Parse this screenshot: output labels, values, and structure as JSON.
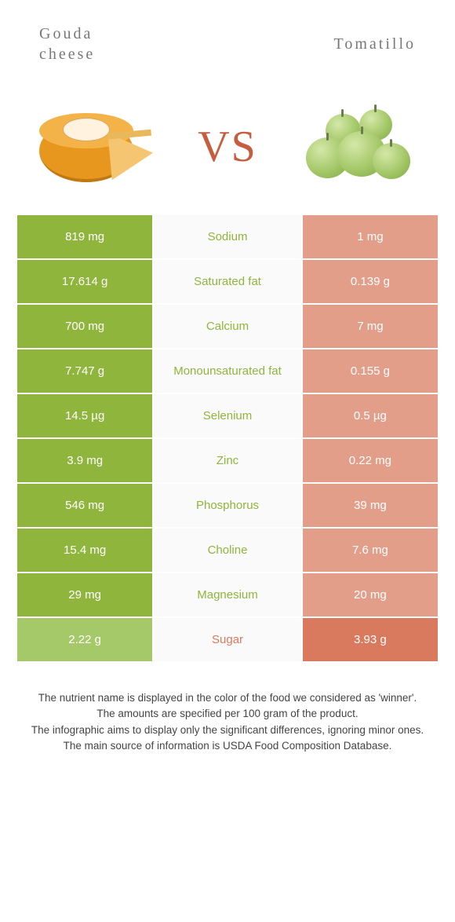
{
  "header": {
    "left_line1": "Gouda",
    "left_line2": "cheese",
    "right": "Tomatillo",
    "vs": "VS"
  },
  "colors": {
    "left_winner_bg": "#8fb53c",
    "left_other_bg": "#a5c869",
    "mid_text_left_wins": "#8fb53c",
    "mid_text_right_wins": "#d97a5e",
    "right_winner_bg": "#d97a5e",
    "right_other_bg": "#e29e89",
    "vs_color": "#c65d3e",
    "title_color": "#777777",
    "footer_color": "#444444",
    "background": "#ffffff"
  },
  "table": {
    "rows": [
      {
        "nutrient": "Sodium",
        "left": "819 mg",
        "right": "1 mg",
        "winner": "left"
      },
      {
        "nutrient": "Saturated fat",
        "left": "17.614 g",
        "right": "0.139 g",
        "winner": "left"
      },
      {
        "nutrient": "Calcium",
        "left": "700 mg",
        "right": "7 mg",
        "winner": "left"
      },
      {
        "nutrient": "Monounsaturated fat",
        "left": "7.747 g",
        "right": "0.155 g",
        "winner": "left"
      },
      {
        "nutrient": "Selenium",
        "left": "14.5 µg",
        "right": "0.5 µg",
        "winner": "left"
      },
      {
        "nutrient": "Zinc",
        "left": "3.9 mg",
        "right": "0.22 mg",
        "winner": "left"
      },
      {
        "nutrient": "Phosphorus",
        "left": "546 mg",
        "right": "39 mg",
        "winner": "left"
      },
      {
        "nutrient": "Choline",
        "left": "15.4 mg",
        "right": "7.6 mg",
        "winner": "left"
      },
      {
        "nutrient": "Magnesium",
        "left": "29 mg",
        "right": "20 mg",
        "winner": "left"
      },
      {
        "nutrient": "Sugar",
        "left": "2.22 g",
        "right": "3.93 g",
        "winner": "right"
      }
    ]
  },
  "footer": {
    "lines": [
      "The nutrient name is displayed in the color of the food we considered as 'winner'.",
      "The amounts are specified per 100 gram of the product.",
      "The infographic aims to display only the significant differences, ignoring minor ones.",
      "The main source of information is USDA Food Composition Database."
    ]
  }
}
